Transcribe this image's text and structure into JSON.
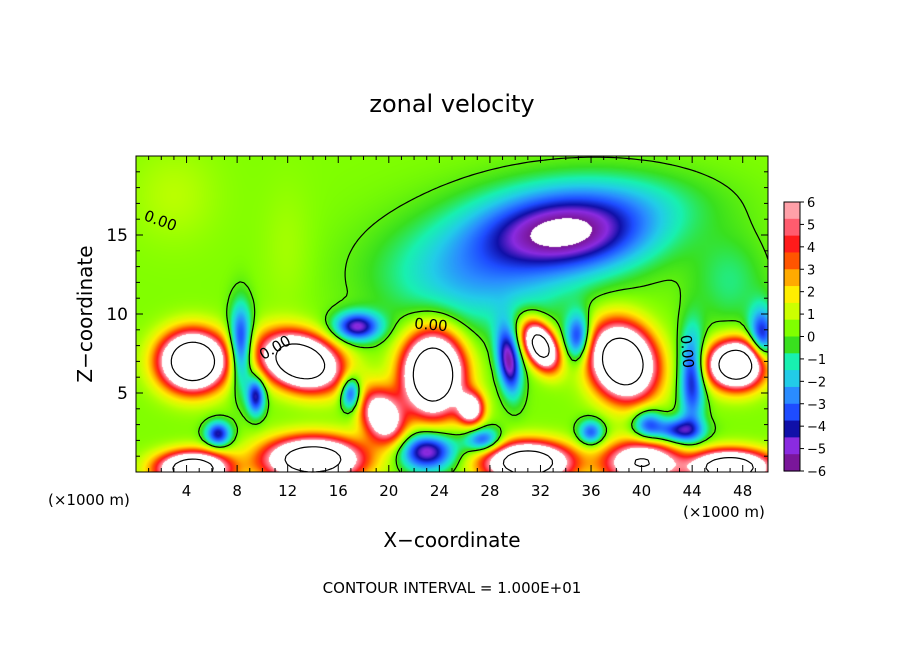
{
  "chart_data": {
    "type": "heatmap",
    "title": "zonal velocity",
    "xlabel": "X−coordinate",
    "ylabel": "Z−coordinate",
    "x_units_left": "(×1000 m)",
    "x_units_right": "(×1000 m)",
    "footer": "CONTOUR INTERVAL = 1.000E+01",
    "xlim": [
      0,
      50
    ],
    "ylim": [
      0,
      20
    ],
    "x_ticks": [
      4,
      8,
      12,
      16,
      20,
      24,
      28,
      32,
      36,
      40,
      44,
      48
    ],
    "x_tick_labels": [
      "4",
      "8",
      "12",
      "16",
      "20",
      "24",
      "28",
      "32",
      "36",
      "40",
      "44",
      "48"
    ],
    "y_ticks": [
      5,
      10,
      15
    ],
    "y_tick_labels": [
      "5",
      "10",
      "15"
    ],
    "contour_labels": [
      {
        "text": "0.00",
        "x": 1.8,
        "y": 15.6,
        "rot": 20
      },
      {
        "text": "0.00",
        "x": 11.2,
        "y": 7.6,
        "rot": -30
      },
      {
        "text": "0.00",
        "x": 23.3,
        "y": 9.0,
        "rot": 5
      },
      {
        "text": "0.00",
        "x": 43.2,
        "y": 7.6,
        "rot": 85
      }
    ],
    "colorbar": {
      "min": -6,
      "max": 6,
      "ticks": [
        6,
        5,
        4,
        3,
        2,
        1,
        0,
        -1,
        -2,
        -3,
        -4,
        -5,
        -6
      ],
      "tick_labels": [
        "6",
        "5",
        "4",
        "3",
        "2",
        "1",
        "0",
        "−1",
        "−2",
        "−3",
        "−4",
        "−5",
        "−6"
      ],
      "colors": [
        "#7a169a",
        "#8a2be0",
        "#1010a8",
        "#1e4cff",
        "#2a8cff",
        "#22cce8",
        "#18f0b0",
        "#39e01e",
        "#80ff00",
        "#ccff00",
        "#ffee00",
        "#ffaa00",
        "#ff5500",
        "#ff1b1b",
        "#ff5c6e",
        "#ffa0a8"
      ]
    },
    "background_value": 0.4,
    "features": [
      {
        "x": 4.5,
        "z": 7.0,
        "sx": 2.4,
        "sz": 1.7,
        "a": 16,
        "tilt": 0
      },
      {
        "x": 13.0,
        "z": 7.0,
        "sx": 2.8,
        "sz": 1.6,
        "a": 15,
        "tilt": 0.5
      },
      {
        "x": 23.5,
        "z": 6.2,
        "sx": 2.2,
        "sz": 2.4,
        "a": 16,
        "tilt": 0
      },
      {
        "x": 19.5,
        "z": 3.5,
        "sx": 1.6,
        "sz": 1.6,
        "a": 9,
        "tilt": 0.5
      },
      {
        "x": 26.5,
        "z": 4.0,
        "sx": 1.0,
        "sz": 1.0,
        "a": 8,
        "tilt": 0
      },
      {
        "x": 32.0,
        "z": 8.0,
        "sx": 1.2,
        "sz": 1.3,
        "a": 13,
        "tilt": 0.8
      },
      {
        "x": 38.5,
        "z": 7.0,
        "sx": 2.4,
        "sz": 2.2,
        "a": 15,
        "tilt": 0.3
      },
      {
        "x": 47.5,
        "z": 6.8,
        "sx": 2.1,
        "sz": 1.4,
        "a": 15,
        "tilt": 0
      },
      {
        "x": 4.5,
        "z": 0.2,
        "sx": 2.6,
        "sz": 1.0,
        "a": 14,
        "tilt": 0
      },
      {
        "x": 14.0,
        "z": 0.8,
        "sx": 3.6,
        "sz": 1.3,
        "a": 14,
        "tilt": 0
      },
      {
        "x": 31.0,
        "z": 0.6,
        "sx": 3.2,
        "sz": 1.2,
        "a": 14,
        "tilt": 0
      },
      {
        "x": 40.0,
        "z": 0.6,
        "sx": 2.8,
        "sz": 1.3,
        "a": 10,
        "tilt": 0
      },
      {
        "x": 47.0,
        "z": 0.3,
        "sx": 3.0,
        "sz": 1.0,
        "a": 14,
        "tilt": 0
      },
      {
        "x": 23.0,
        "z": 1.3,
        "sx": 2.2,
        "sz": 1.2,
        "a": -6,
        "tilt": 0
      },
      {
        "x": 34.0,
        "z": 15.0,
        "sx": 6.5,
        "sz": 2.3,
        "a": -5.6,
        "tilt": 0
      },
      {
        "x": 27.0,
        "z": 12.5,
        "sx": 7.5,
        "sz": 3.5,
        "a": -2.8,
        "tilt": 0
      },
      {
        "x": 37.0,
        "z": 17.0,
        "sx": 8.0,
        "sz": 2.2,
        "a": -2.0,
        "tilt": 0
      },
      {
        "x": 8.3,
        "z": 8.0,
        "sx": 0.9,
        "sz": 2.5,
        "a": -5.5,
        "tilt": 0
      },
      {
        "x": 9.5,
        "z": 4.8,
        "sx": 0.7,
        "sz": 1.2,
        "a": -5.0,
        "tilt": 0
      },
      {
        "x": 17.5,
        "z": 9.2,
        "sx": 1.8,
        "sz": 0.9,
        "a": -5.5,
        "tilt": 0
      },
      {
        "x": 17.0,
        "z": 5.0,
        "sx": 0.8,
        "sz": 1.1,
        "a": -5.0,
        "tilt": 0
      },
      {
        "x": 29.5,
        "z": 7.0,
        "sx": 0.9,
        "sz": 2.0,
        "a": -6.0,
        "tilt": 0.6
      },
      {
        "x": 35.0,
        "z": 8.5,
        "sx": 1.0,
        "sz": 1.5,
        "a": -5.0,
        "tilt": 0
      },
      {
        "x": 44.0,
        "z": 6.0,
        "sx": 1.0,
        "sz": 3.0,
        "a": -5.0,
        "tilt": 0
      },
      {
        "x": 49.5,
        "z": 8.5,
        "sx": 1.0,
        "sz": 1.8,
        "a": -5.0,
        "tilt": 0
      },
      {
        "x": 6.5,
        "z": 2.4,
        "sx": 1.0,
        "sz": 0.8,
        "a": -5.0,
        "tilt": 0
      },
      {
        "x": 43.0,
        "z": 2.6,
        "sx": 1.8,
        "sz": 0.8,
        "a": -4.8,
        "tilt": 0
      },
      {
        "x": 27.5,
        "z": 2.0,
        "sx": 1.4,
        "sz": 0.8,
        "a": -4.5,
        "tilt": 0
      },
      {
        "x": 36.0,
        "z": 2.5,
        "sx": 1.0,
        "sz": 0.8,
        "a": -4.0,
        "tilt": 0
      },
      {
        "x": 40.5,
        "z": 3.0,
        "sx": 1.2,
        "sz": 1.0,
        "a": -4.0,
        "tilt": 0
      },
      {
        "x": 3.0,
        "z": 17.5,
        "sx": 3.5,
        "sz": 3.0,
        "a": 0.6,
        "tilt": 0
      },
      {
        "x": 47.0,
        "z": 12.0,
        "sx": 3.0,
        "sz": 3.0,
        "a": -1.3,
        "tilt": 0
      },
      {
        "x": 12.0,
        "z": 14.0,
        "sx": 2.0,
        "sz": 4.0,
        "a": 0.4,
        "tilt": 0
      }
    ]
  }
}
